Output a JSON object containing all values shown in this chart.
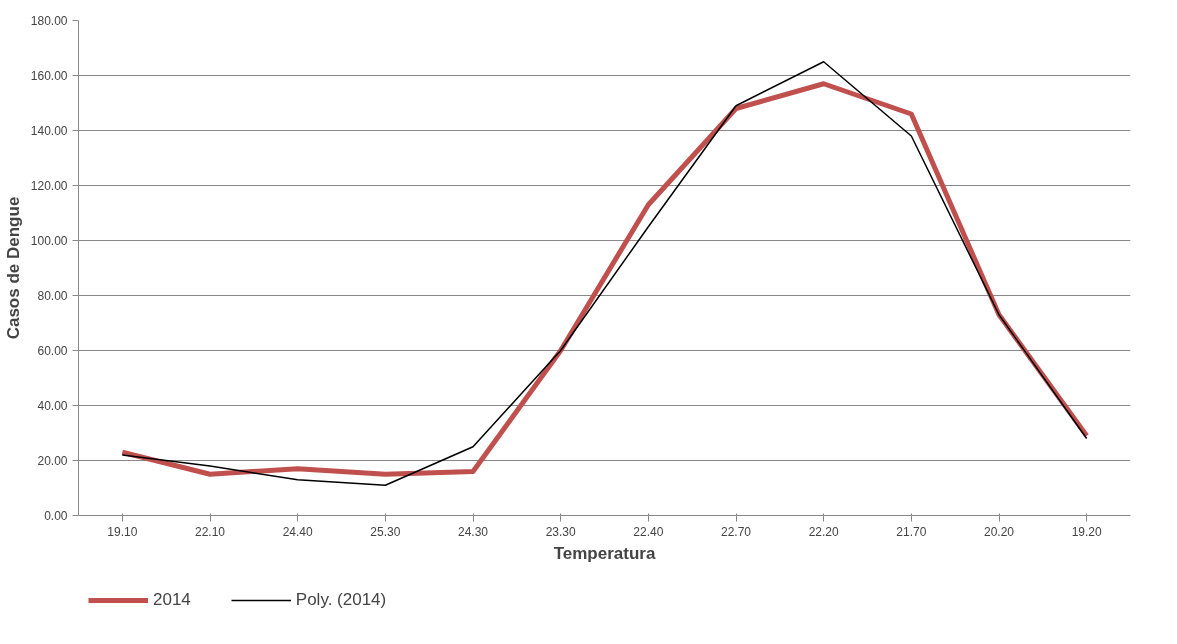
{
  "chart_data": {
    "type": "line",
    "xlabel": "Temperatura",
    "ylabel": "Casos de Dengue",
    "categories": [
      "19.10",
      "22.10",
      "24.40",
      "25.30",
      "24.30",
      "23.30",
      "22.40",
      "22.70",
      "22.20",
      "21.70",
      "20.20",
      "19.20"
    ],
    "series": [
      {
        "name": "2014",
        "color": "#c0504d",
        "values": [
          23,
          15,
          17,
          15,
          16,
          60,
          113,
          148,
          157,
          146,
          73,
          29
        ]
      },
      {
        "name": "Poly. (2014)",
        "color": "#000000",
        "values": [
          22,
          18,
          13,
          11,
          25,
          60,
          105,
          149,
          165,
          138,
          73,
          28
        ]
      }
    ],
    "ylim": [
      0,
      180
    ],
    "yticks": [
      {
        "value": 0,
        "label": "0.00"
      },
      {
        "value": 20,
        "label": "20.00"
      },
      {
        "value": 40,
        "label": "40.00"
      },
      {
        "value": 60,
        "label": "60.00"
      },
      {
        "value": 80,
        "label": "80.00"
      },
      {
        "value": 100,
        "label": "100.00"
      },
      {
        "value": 120,
        "label": "120.00"
      },
      {
        "value": 140,
        "label": "140.00"
      },
      {
        "value": 160,
        "label": "160.00"
      },
      {
        "value": 180,
        "label": "180.00"
      }
    ],
    "grid": "y",
    "legend": "bottom left",
    "marker": "none",
    "line_style": "solid"
  }
}
